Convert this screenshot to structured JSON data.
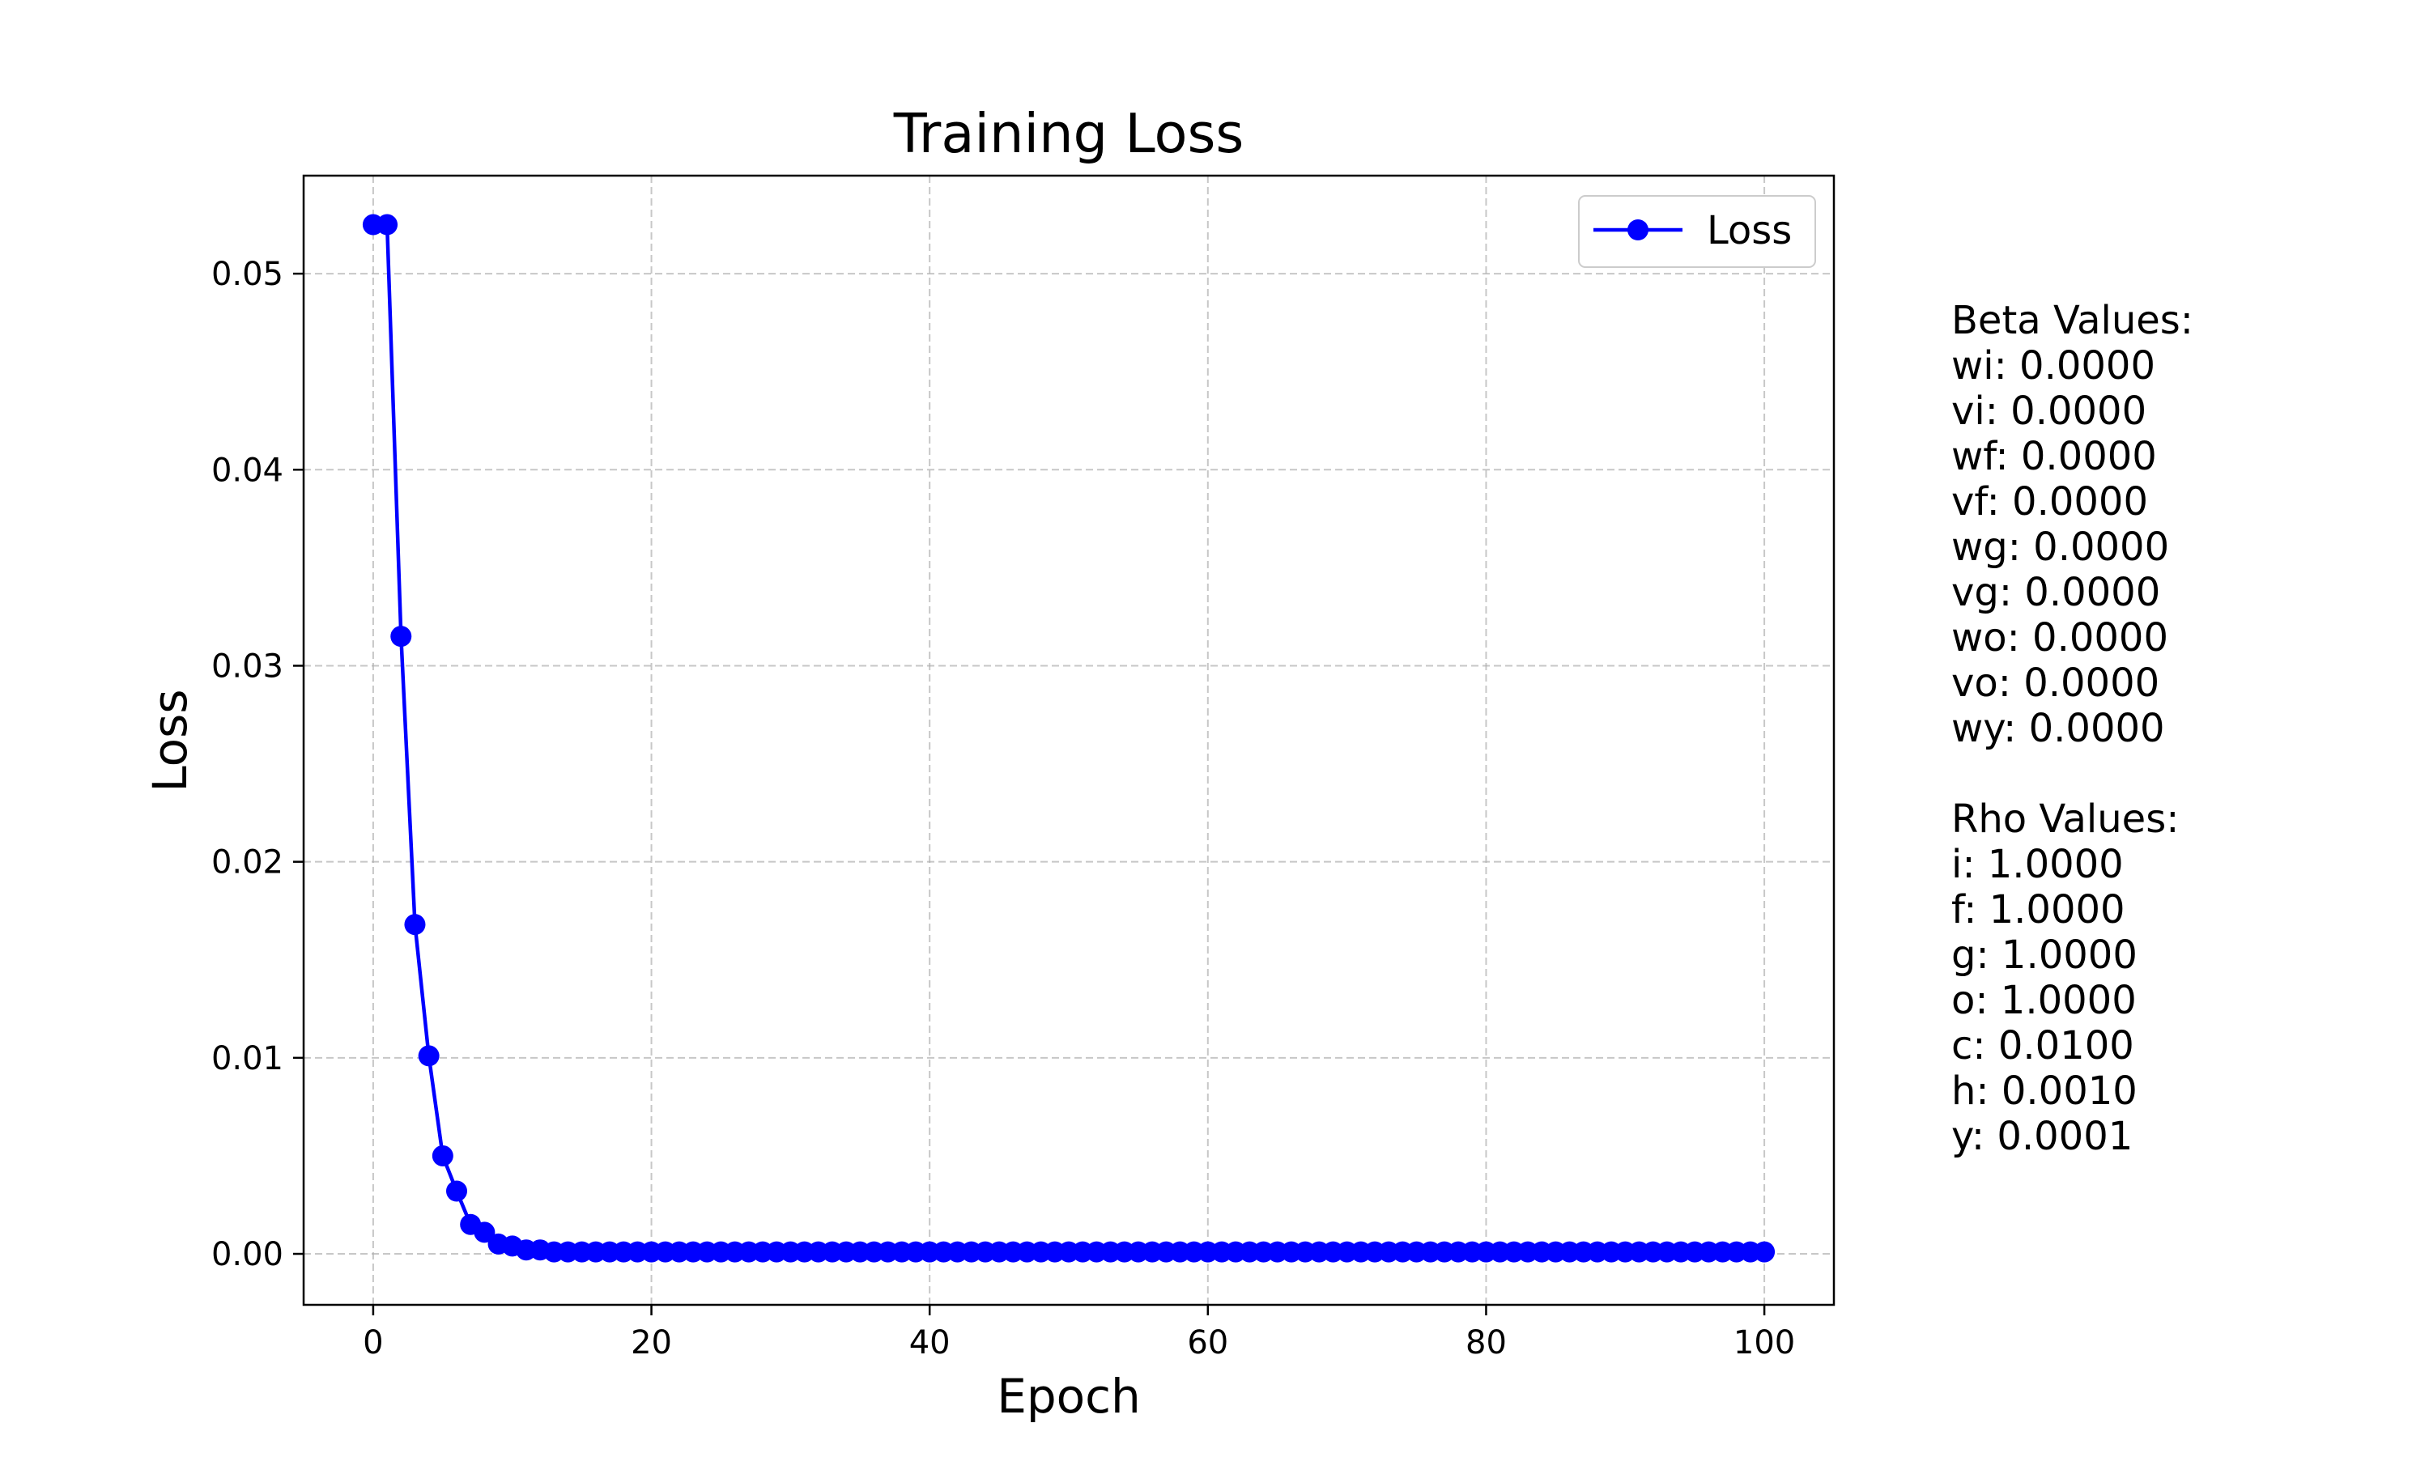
{
  "chart_data": {
    "type": "line",
    "title": "Training Loss",
    "xlabel": "Epoch",
    "ylabel": "Loss",
    "xlim": [
      -5,
      105
    ],
    "ylim": [
      -0.0026,
      0.055
    ],
    "xticks": [
      "0",
      "20",
      "40",
      "60",
      "80",
      "100"
    ],
    "yticks": [
      "0.00",
      "0.01",
      "0.02",
      "0.03",
      "0.04",
      "0.05"
    ],
    "grid": true,
    "grid_style": "dashed",
    "legend": "upper-right",
    "series": [
      {
        "name": "Loss",
        "color": "#0000ff",
        "marker": "circle",
        "x": [
          0,
          1,
          2,
          3,
          4,
          5,
          6,
          7,
          8,
          9,
          10,
          11,
          12,
          13,
          14,
          15,
          16,
          17,
          18,
          19,
          20,
          21,
          22,
          23,
          24,
          25,
          26,
          27,
          28,
          29,
          30,
          31,
          32,
          33,
          34,
          35,
          36,
          37,
          38,
          39,
          40,
          41,
          42,
          43,
          44,
          45,
          46,
          47,
          48,
          49,
          50,
          51,
          52,
          53,
          54,
          55,
          56,
          57,
          58,
          59,
          60,
          61,
          62,
          63,
          64,
          65,
          66,
          67,
          68,
          69,
          70,
          71,
          72,
          73,
          74,
          75,
          76,
          77,
          78,
          79,
          80,
          81,
          82,
          83,
          84,
          85,
          86,
          87,
          88,
          89,
          90,
          91,
          92,
          93,
          94,
          95,
          96,
          97,
          98,
          99,
          100
        ],
        "values": [
          0.0525,
          0.0525,
          0.0315,
          0.0168,
          0.0101,
          0.005,
          0.0032,
          0.0015,
          0.0011,
          0.0005,
          0.0004,
          0.0002,
          0.0002,
          0.0001,
          0.0001,
          0.0001,
          0.0001,
          0.0001,
          0.0001,
          0.0001,
          0.0001,
          0.0001,
          0.0001,
          0.0001,
          0.0001,
          0.0001,
          0.0001,
          0.0001,
          0.0001,
          0.0001,
          0.0001,
          0.0001,
          0.0001,
          0.0001,
          0.0001,
          0.0001,
          0.0001,
          0.0001,
          0.0001,
          0.0001,
          0.0001,
          0.0001,
          0.0001,
          0.0001,
          0.0001,
          0.0001,
          0.0001,
          0.0001,
          0.0001,
          0.0001,
          0.0001,
          0.0001,
          0.0001,
          0.0001,
          0.0001,
          0.0001,
          0.0001,
          0.0001,
          0.0001,
          0.0001,
          0.0001,
          0.0001,
          0.0001,
          0.0001,
          0.0001,
          0.0001,
          0.0001,
          0.0001,
          0.0001,
          0.0001,
          0.0001,
          0.0001,
          0.0001,
          0.0001,
          0.0001,
          0.0001,
          0.0001,
          0.0001,
          0.0001,
          0.0001,
          0.0001,
          0.0001,
          0.0001,
          0.0001,
          0.0001,
          0.0001,
          0.0001,
          0.0001,
          0.0001,
          0.0001,
          0.0001,
          0.0001,
          0.0001,
          0.0001,
          0.0001,
          0.0001,
          0.0001,
          0.0001,
          0.0001,
          0.0001,
          0.0001
        ]
      }
    ]
  },
  "side_panel": {
    "beta_title": "Beta Values:",
    "beta": [
      "wi: 0.0000",
      "vi: 0.0000",
      "wf: 0.0000",
      "vf: 0.0000",
      "wg: 0.0000",
      "vg: 0.0000",
      "wo: 0.0000",
      "vo: 0.0000",
      "wy: 0.0000"
    ],
    "rho_title": "Rho Values:",
    "rho": [
      "i: 1.0000",
      "f: 1.0000",
      "g: 1.0000",
      "o: 1.0000",
      "c: 0.0100",
      "h: 0.0010",
      "y: 0.0001"
    ]
  }
}
